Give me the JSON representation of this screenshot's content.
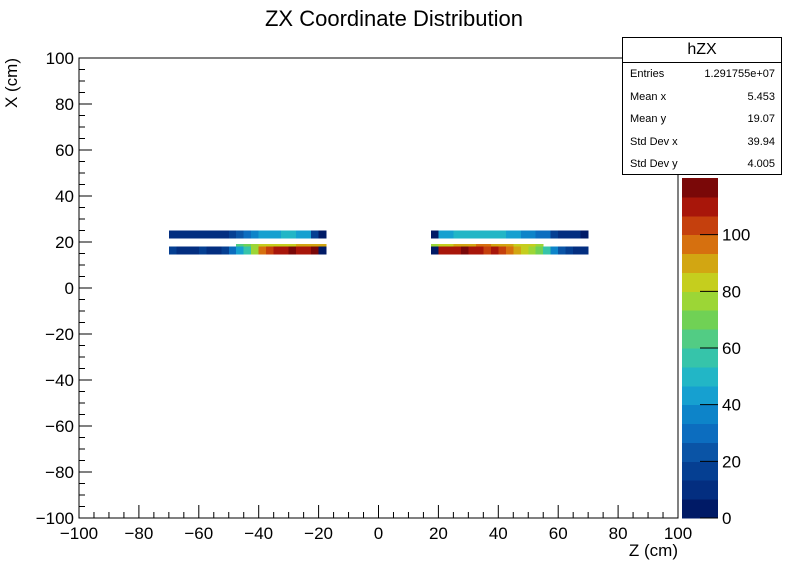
{
  "chart_data": {
    "type": "heatmap",
    "title": "ZX Coordinate Distribution",
    "xlabel": "Z (cm)",
    "ylabel": "X (cm)",
    "xlim": [
      -100,
      100
    ],
    "ylim": [
      -100,
      100
    ],
    "x_ticks": [
      "−100",
      "−80",
      "−60",
      "−40",
      "−20",
      "0",
      "20",
      "40",
      "60",
      "80",
      "100"
    ],
    "y_ticks": [
      "−100",
      "−80",
      "−60",
      "−40",
      "−20",
      "0",
      "20",
      "40",
      "60",
      "80",
      "100"
    ],
    "colorbar": {
      "min": 0,
      "max": 120,
      "ticks": [
        "0",
        "20",
        "40",
        "60",
        "80",
        "100"
      ]
    },
    "bin_width_z": 2.5,
    "bin_height_x": 3.5,
    "bands": [
      {
        "z_start": -70,
        "x_low": 21.5,
        "values": [
          8,
          8,
          10,
          8,
          10,
          8,
          8,
          12,
          15,
          22,
          28,
          35,
          40,
          45,
          45,
          48,
          48,
          45,
          42,
          18,
          2
        ]
      },
      {
        "z_start": -70,
        "x_low": 14.5,
        "values": [
          15,
          10,
          12,
          10,
          15,
          8,
          10,
          18,
          28,
          40,
          55,
          75,
          95,
          105,
          110,
          112,
          115,
          110,
          108,
          115,
          2
        ]
      },
      {
        "z_start": 17.5,
        "x_low": 21.5,
        "values": [
          2,
          42,
          45,
          48,
          50,
          50,
          52,
          48,
          50,
          48,
          45,
          40,
          38,
          35,
          32,
          28,
          18,
          12,
          10,
          8,
          6
        ]
      },
      {
        "z_start": 17.5,
        "x_low": 14.5,
        "values": [
          2,
          112,
          112,
          110,
          115,
          108,
          110,
          105,
          110,
          100,
          95,
          88,
          82,
          78,
          70,
          55,
          35,
          22,
          15,
          12,
          10
        ]
      }
    ],
    "inner_rows": [
      {
        "z_start": -47.5,
        "x_low": 18.0,
        "values": [
          65,
          72,
          78,
          80,
          80,
          82,
          85,
          85,
          88,
          90,
          92,
          92
        ]
      },
      {
        "z_start": 17.5,
        "x_low": 18.0,
        "values": [
          78,
          80,
          82,
          88,
          90,
          92,
          95,
          95,
          92,
          90,
          88,
          85,
          82,
          80,
          78
        ]
      }
    ]
  },
  "stats": {
    "name": "hZX",
    "rows": [
      {
        "label": "Entries",
        "value": "1.291755e+07"
      },
      {
        "label": "Mean x",
        "value": "5.453"
      },
      {
        "label": "Mean y",
        "value": "19.07"
      },
      {
        "label": "Std Dev x",
        "value": "39.94"
      },
      {
        "label": "Std Dev y",
        "value": "4.005"
      }
    ]
  }
}
